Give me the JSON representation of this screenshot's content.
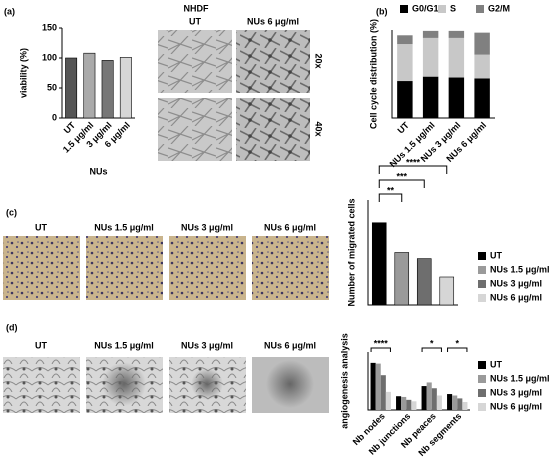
{
  "panel_labels": [
    "(a)",
    "(b)",
    "(c)",
    "(d)"
  ],
  "panel_a_images": {
    "title": "NHDF",
    "columns": [
      "UT",
      "NUs 6 μg/ml"
    ],
    "rows": [
      "20x",
      "40x"
    ]
  },
  "panel_c_images": [
    "UT",
    "NUs 1.5 μg/ml",
    "NUs 3 μg/ml",
    "NUs 6 μg/ml"
  ],
  "panel_d_images": [
    "UT",
    "NUs 1.5 μg/ml",
    "NUs 3 μg/ml",
    "NUs 6 μg/ml"
  ],
  "chart_data": [
    {
      "type": "bar",
      "ylabel": "viability (%)",
      "xlabel": "NUs",
      "categories": [
        "UT",
        "1.5 μg/ml",
        "3 μg/ml",
        "6 μg/ml"
      ],
      "values": [
        100,
        108,
        96,
        101
      ],
      "colors": [
        "#555555",
        "#aaaaaa",
        "#777777",
        "#d6d6d6"
      ],
      "ylim": [
        0,
        150
      ],
      "yticks": [
        0,
        50,
        100,
        150
      ]
    },
    {
      "type": "stacked_bar",
      "ylabel": "Cell cycle distribution (%)",
      "categories": [
        "UT",
        "NUs 1.5 μg/ml",
        "NUs 3 μg/ml",
        "NUs 6 μg/ml"
      ],
      "series": [
        {
          "name": "G0/G1",
          "color": "#000000",
          "values": [
            42,
            47,
            46,
            45
          ]
        },
        {
          "name": "S",
          "color": "#c8c8c8",
          "values": [
            42,
            44,
            45,
            27
          ]
        },
        {
          "name": "G2/M",
          "color": "#808080",
          "values": [
            10,
            8,
            8,
            25
          ]
        }
      ],
      "ylim": [
        0,
        100
      ]
    },
    {
      "type": "bar",
      "ylabel": "Number of migrated cells",
      "legend": "right",
      "categories": [
        "UT",
        "NUs 1.5 μg/ml",
        "NUs 3 μg/ml",
        "NUs 6 μg/ml"
      ],
      "values": [
        470,
        300,
        265,
        160
      ],
      "colors": [
        "#000000",
        "#9a9a9a",
        "#6e6e6e",
        "#d6d6d6"
      ],
      "ylim": [
        0,
        600
      ],
      "annotations": [
        {
          "text": "**",
          "from": "UT",
          "to": "NUs 1.5 μg/ml"
        },
        {
          "text": "***",
          "from": "UT",
          "to": "NUs 3 μg/ml"
        },
        {
          "text": "****",
          "from": "UT",
          "to": "NUs 6 μg/ml"
        }
      ]
    },
    {
      "type": "grouped_bar",
      "ylabel": "angiogenesis analysis",
      "legend": "right",
      "categories": [
        "Nb nodes",
        "Nb junctions",
        "Nb peaces",
        "Nb segments"
      ],
      "series": [
        {
          "name": "UT",
          "color": "#000000",
          "values": [
            650,
            190,
            330,
            220
          ]
        },
        {
          "name": "NUs 1.5 μg/ml",
          "color": "#9a9a9a",
          "values": [
            640,
            180,
            380,
            200
          ]
        },
        {
          "name": "NUs 3 μg/ml",
          "color": "#6e6e6e",
          "values": [
            480,
            140,
            300,
            160
          ]
        },
        {
          "name": "NUs 6 μg/ml",
          "color": "#d6d6d6",
          "values": [
            250,
            120,
            200,
            110
          ]
        }
      ],
      "ylim": [
        0,
        800
      ],
      "annotations": [
        {
          "text": "****",
          "category": "Nb nodes"
        },
        {
          "text": "*",
          "category": "Nb peaces"
        },
        {
          "text": "*",
          "category": "Nb segments"
        }
      ]
    }
  ]
}
